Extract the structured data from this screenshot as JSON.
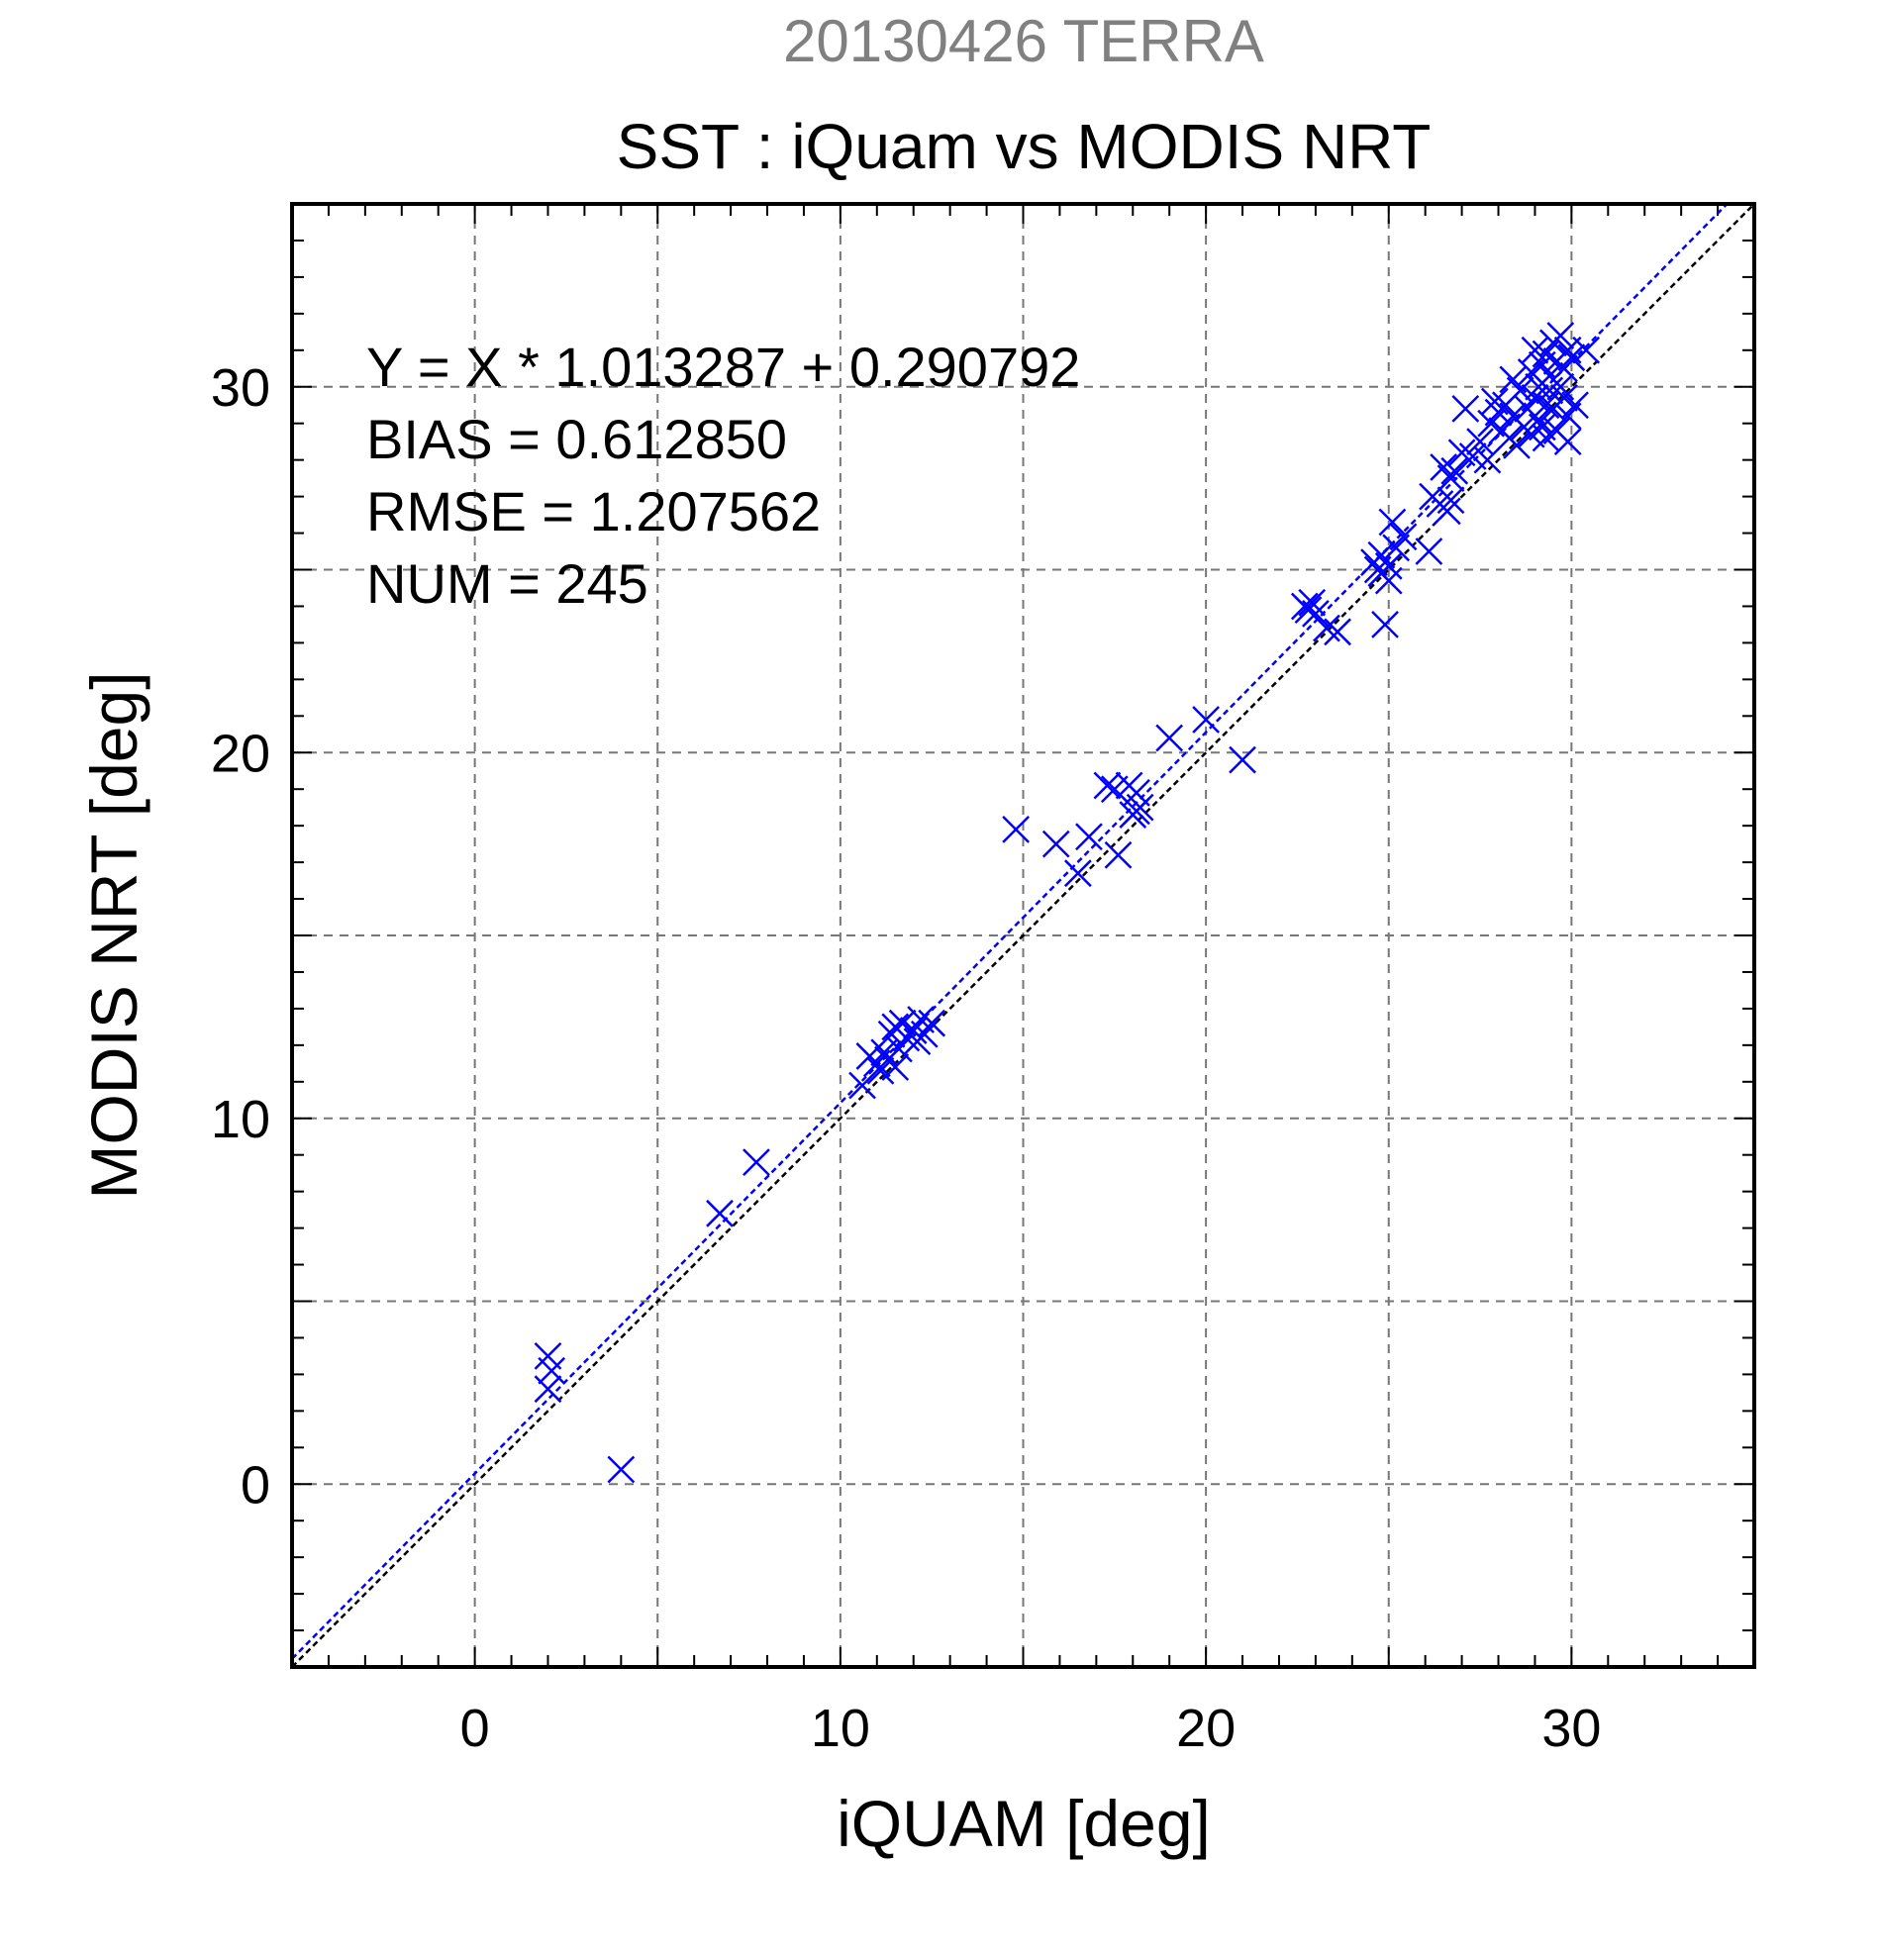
{
  "chart_data": {
    "type": "scatter",
    "title": "20130426 TERRA",
    "subtitle": "SST : iQuam vs MODIS NRT",
    "xlabel": "iQUAM [deg]",
    "ylabel": "MODIS NRT [deg]",
    "xlim": [
      -5,
      35
    ],
    "ylim": [
      -5,
      35
    ],
    "xticks": [
      0,
      10,
      20,
      30
    ],
    "yticks": [
      0,
      10,
      20,
      30
    ],
    "xtick_labels": [
      "0",
      "10",
      "20",
      "30"
    ],
    "ytick_labels": [
      "0",
      "10",
      "20",
      "30"
    ],
    "minor_step": 1,
    "grid_step": 5,
    "grid": true,
    "annotations": [
      "Y = X * 1.013287 + 0.290792",
      "BIAS = 0.612850",
      "RMSE = 1.207562",
      "NUM = 245"
    ],
    "fit": {
      "slope": 1.013287,
      "intercept": 0.290792,
      "color": "#0000ff"
    },
    "identity_line": {
      "slope": 1,
      "intercept": 0,
      "color": "#000000"
    },
    "marker": "x",
    "marker_color": "#0000ff",
    "title_color": "#808080",
    "points": [
      [
        2.0,
        3.5
      ],
      [
        2.1,
        3.1
      ],
      [
        2.0,
        2.6
      ],
      [
        4.0,
        0.4
      ],
      [
        6.7,
        7.4
      ],
      [
        7.7,
        8.8
      ],
      [
        10.6,
        10.9
      ],
      [
        10.8,
        11.7
      ],
      [
        11.0,
        11.5
      ],
      [
        11.1,
        11.3
      ],
      [
        11.2,
        11.8
      ],
      [
        11.3,
        11.6
      ],
      [
        11.4,
        12.3
      ],
      [
        11.5,
        11.4
      ],
      [
        11.5,
        12.5
      ],
      [
        11.6,
        11.9
      ],
      [
        11.7,
        12.6
      ],
      [
        11.8,
        12.2
      ],
      [
        12.0,
        12.4
      ],
      [
        12.1,
        12.1
      ],
      [
        12.2,
        12.7
      ],
      [
        12.3,
        12.3
      ],
      [
        12.5,
        12.6
      ],
      [
        14.8,
        17.9
      ],
      [
        15.9,
        17.5
      ],
      [
        16.5,
        16.7
      ],
      [
        16.8,
        17.7
      ],
      [
        17.3,
        19.1
      ],
      [
        17.5,
        19.0
      ],
      [
        17.6,
        17.2
      ],
      [
        17.9,
        19.1
      ],
      [
        18.0,
        18.3
      ],
      [
        18.1,
        18.9
      ],
      [
        18.1,
        18.4
      ],
      [
        18.2,
        18.5
      ],
      [
        19.0,
        20.4
      ],
      [
        20.0,
        20.9
      ],
      [
        21.0,
        19.8
      ],
      [
        22.7,
        24.0
      ],
      [
        22.8,
        23.9
      ],
      [
        22.9,
        24.1
      ],
      [
        23.0,
        23.8
      ],
      [
        23.3,
        23.4
      ],
      [
        23.6,
        23.3
      ],
      [
        24.6,
        25.2
      ],
      [
        24.7,
        25.0
      ],
      [
        24.8,
        24.9
      ],
      [
        24.8,
        25.4
      ],
      [
        24.9,
        23.5
      ],
      [
        25.0,
        24.7
      ],
      [
        25.0,
        25.1
      ],
      [
        25.1,
        26.3
      ],
      [
        25.2,
        25.6
      ],
      [
        25.4,
        25.9
      ],
      [
        26.1,
        25.5
      ],
      [
        26.2,
        27.0
      ],
      [
        26.4,
        26.8
      ],
      [
        26.5,
        27.8
      ],
      [
        26.6,
        26.6
      ],
      [
        26.7,
        27.5
      ],
      [
        26.7,
        26.9
      ],
      [
        26.8,
        27.7
      ],
      [
        27.0,
        28.2
      ],
      [
        27.1,
        29.4
      ],
      [
        27.3,
        28.1
      ],
      [
        27.5,
        28.5
      ],
      [
        27.7,
        28.0
      ],
      [
        27.8,
        29.0
      ],
      [
        27.9,
        29.6
      ],
      [
        28.0,
        29.3
      ],
      [
        28.1,
        28.8
      ],
      [
        28.2,
        29.5
      ],
      [
        28.3,
        28.6
      ],
      [
        28.4,
        29.2
      ],
      [
        28.4,
        30.2
      ],
      [
        28.5,
        28.4
      ],
      [
        28.6,
        29.9
      ],
      [
        28.7,
        28.9
      ],
      [
        28.8,
        29.4
      ],
      [
        28.9,
        30.4
      ],
      [
        28.9,
        28.7
      ],
      [
        29.0,
        29.7
      ],
      [
        29.0,
        31.0
      ],
      [
        29.1,
        29.1
      ],
      [
        29.1,
        30.0
      ],
      [
        29.2,
        28.9
      ],
      [
        29.2,
        30.6
      ],
      [
        29.3,
        29.5
      ],
      [
        29.3,
        30.9
      ],
      [
        29.3,
        28.6
      ],
      [
        29.4,
        30.3
      ],
      [
        29.4,
        29.9
      ],
      [
        29.5,
        31.2
      ],
      [
        29.5,
        29.4
      ],
      [
        29.6,
        30.7
      ],
      [
        29.6,
        28.8
      ],
      [
        29.7,
        30.0
      ],
      [
        29.7,
        31.4
      ],
      [
        29.8,
        29.7
      ],
      [
        29.8,
        30.5
      ],
      [
        29.9,
        28.5
      ],
      [
        29.9,
        31.0
      ],
      [
        29.9,
        29.2
      ],
      [
        30.0,
        30.8
      ],
      [
        30.1,
        29.5
      ],
      [
        30.4,
        31.0
      ]
    ]
  }
}
